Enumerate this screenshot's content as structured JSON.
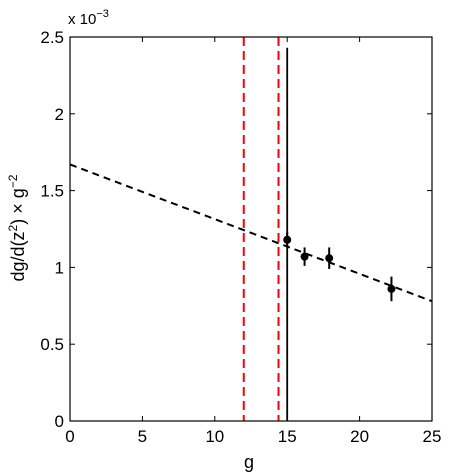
{
  "chart_data": {
    "type": "scatter",
    "xlabel": "g",
    "ylabel": "dg/d(z²) × g⁻²",
    "ylabel_parts": {
      "a": "dg/d(z",
      "sup1": "2",
      "b": ") × g",
      "sup2": "−2"
    },
    "y_exponent_label": {
      "base": "x 10",
      "exp": "−3"
    },
    "xlim": [
      0,
      25
    ],
    "ylim": [
      0,
      2.5
    ],
    "xticks": [
      0,
      5,
      10,
      15,
      20,
      25
    ],
    "xtick_labels": [
      "0",
      "5",
      "10",
      "15",
      "20",
      "25"
    ],
    "yticks": [
      0,
      0.5,
      1,
      1.5,
      2,
      2.5
    ],
    "ytick_labels": [
      "0",
      "0.5",
      "1",
      "1.5",
      "2",
      "2.5"
    ],
    "y_scale_factor": 0.001,
    "grid": false,
    "points": [
      {
        "x": 15.0,
        "y": 1.18,
        "err": 0.05
      },
      {
        "x": 16.2,
        "y": 1.07,
        "err": 0.06
      },
      {
        "x": 17.9,
        "y": 1.06,
        "err": 0.07
      },
      {
        "x": 22.2,
        "y": 0.86,
        "err": 0.08
      }
    ],
    "fit_line": {
      "x": [
        0,
        25
      ],
      "y": [
        1.67,
        0.78
      ],
      "style": "dashed",
      "color": "#000000"
    },
    "vertical_lines": [
      {
        "x": 12.0,
        "color": "#ff0000",
        "style": "dashed"
      },
      {
        "x": 14.4,
        "color": "#ff0000",
        "style": "dashed"
      },
      {
        "x": 15.0,
        "color": "#000000",
        "style": "solid"
      }
    ],
    "colors": {
      "points": "#000000",
      "dashed_red": "#ff0000",
      "axes": "#000000"
    }
  }
}
